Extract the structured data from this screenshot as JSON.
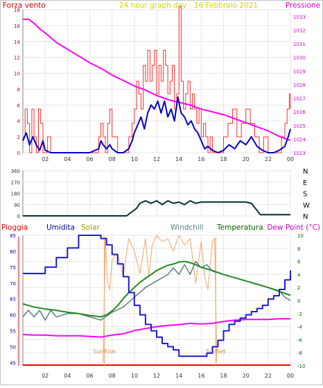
{
  "header": {
    "title": "24 hour graph day - 16 Febbraio 2021",
    "wind_label": "Forza vento",
    "pressure_label": "Pressione"
  },
  "panel3": {
    "rain_label": "Pioggia",
    "humidity_label": "Umidita",
    "solar_label": "Solar",
    "windchill_label": "Windchill",
    "temperature_label": "Temperatura",
    "dewpoint_label": "Dew Point (°C)",
    "sunrise_label": "SunRise",
    "sunset_label": "SunSet"
  },
  "colors": {
    "wind_gust": "#ff2a2a",
    "wind_avg": "#0000cc",
    "pressure": "#ff00ff",
    "direction": "#003333",
    "humidity": "#1a1adb",
    "solar": "#f4a46a",
    "windchill": "#5c7f7f",
    "temperature": "#1f8a1f",
    "dewpoint": "#ff00ff",
    "rain": "#ff0000",
    "sun_lines": "#f4a460"
  },
  "chart_data": [
    {
      "type": "line",
      "name": "wind-pressure",
      "x_ticks": [
        "02",
        "04",
        "06",
        "08",
        "10",
        "12",
        "14",
        "16",
        "18",
        "20",
        "22",
        "00"
      ],
      "xlim": [
        0,
        24
      ],
      "ylim_left": [
        0,
        18
      ],
      "y_ticks_left": [
        0,
        2,
        4,
        6,
        8,
        10,
        12,
        14,
        16,
        18
      ],
      "ylim_right": [
        1023,
        1033.5
      ],
      "y_ticks_right": [
        1023,
        1024,
        1025,
        1026,
        1027,
        1028,
        1029,
        1030,
        1031,
        1032,
        1033
      ],
      "series": [
        {
          "name": "Forza vento",
          "axis": "left",
          "x": [
            0.0,
            0.2,
            0.4,
            0.6,
            0.8,
            1.0,
            1.2,
            1.4,
            1.6,
            1.8,
            2.0,
            2.2,
            2.5,
            3.0,
            3.5,
            4.0,
            4.5,
            5.0,
            5.5,
            6.0,
            6.5,
            6.8,
            7.0,
            7.2,
            7.4,
            7.6,
            7.8,
            8.0,
            8.5,
            9.0,
            9.5,
            9.8,
            10.0,
            10.2,
            10.4,
            10.6,
            10.8,
            11.0,
            11.2,
            11.4,
            11.6,
            11.8,
            12.0,
            12.2,
            12.4,
            12.6,
            12.8,
            13.0,
            13.2,
            13.4,
            13.6,
            13.8,
            14.0,
            14.2,
            14.4,
            14.6,
            14.8,
            15.0,
            15.2,
            15.4,
            15.6,
            15.8,
            16.0,
            16.2,
            16.4,
            16.6,
            16.8,
            17.0,
            17.5,
            18.0,
            18.4,
            18.8,
            19.2,
            19.6,
            20.0,
            20.4,
            20.8,
            21.2,
            21.6,
            22.0,
            22.4,
            22.8,
            23.2,
            23.5,
            23.7,
            23.9,
            24.0
          ],
          "values": [
            2,
            5.5,
            3.7,
            0,
            5.5,
            2,
            0,
            5.5,
            3.7,
            0,
            0,
            2,
            0,
            0,
            0,
            0,
            0,
            0,
            0,
            0,
            0,
            2,
            3.7,
            2,
            0,
            3.7,
            5.5,
            2,
            0,
            0,
            2,
            3.7,
            5.5,
            9,
            7.4,
            5.5,
            11,
            9,
            12.9,
            9,
            11,
            12.9,
            7.4,
            11,
            9,
            12.9,
            11,
            7.4,
            9,
            11,
            5.5,
            7.4,
            18.4,
            9,
            5.5,
            7.4,
            9,
            5.5,
            7.4,
            5.5,
            3.7,
            5.5,
            2,
            3.7,
            2,
            0,
            2,
            0,
            0,
            2,
            3.7,
            5.5,
            2,
            3.7,
            5.5,
            3.7,
            2,
            0,
            2,
            0,
            0,
            0,
            2,
            3.7,
            5.5,
            7.4,
            5.5
          ]
        },
        {
          "name": "Forza vento media",
          "axis": "left",
          "x": [
            0.0,
            0.3,
            0.6,
            0.9,
            1.2,
            1.5,
            1.8,
            2.0,
            2.5,
            3.0,
            4.0,
            5.0,
            6.0,
            6.8,
            7.0,
            7.2,
            7.5,
            7.8,
            8.0,
            8.5,
            9.0,
            9.5,
            9.8,
            10.0,
            10.3,
            10.6,
            10.9,
            11.2,
            11.5,
            11.8,
            12.1,
            12.4,
            12.7,
            13.0,
            13.3,
            13.6,
            13.9,
            14.2,
            14.5,
            14.8,
            15.1,
            15.4,
            15.7,
            16.0,
            16.3,
            16.6,
            17.0,
            17.5,
            18.0,
            18.5,
            19.0,
            19.5,
            20.0,
            20.5,
            21.0,
            21.5,
            22.0,
            22.5,
            23.0,
            23.5,
            23.8,
            24.0
          ],
          "values": [
            1.5,
            2.5,
            1.0,
            2.0,
            1.0,
            0.3,
            1.5,
            0.3,
            0,
            0,
            0,
            0,
            0,
            0.5,
            1.5,
            1.0,
            0.5,
            1.0,
            0.5,
            0,
            0,
            0.5,
            1.5,
            2.5,
            3.5,
            4.5,
            3.0,
            5.0,
            6.0,
            5.5,
            6.5,
            5.0,
            6.5,
            4.5,
            5.5,
            4.0,
            7.0,
            5.0,
            4.5,
            3.5,
            4.0,
            3.0,
            2.5,
            1.5,
            0.5,
            0.8,
            0.3,
            0,
            0.3,
            1.0,
            0.5,
            1.5,
            1.0,
            2.0,
            0.8,
            0.3,
            0,
            0,
            0.3,
            0.8,
            2.0,
            3.0
          ]
        },
        {
          "name": "Pressione",
          "axis": "right",
          "x": [
            0,
            0.5,
            1,
            1.5,
            2,
            3,
            4,
            5,
            6,
            7,
            8,
            9,
            10,
            11,
            12,
            13,
            14,
            15,
            16,
            17,
            18,
            19,
            20,
            21,
            22,
            23,
            24
          ],
          "values": [
            1032.8,
            1032.8,
            1032.5,
            1032.1,
            1031.8,
            1031.1,
            1030.6,
            1030.1,
            1029.6,
            1029.2,
            1028.7,
            1028.3,
            1027.9,
            1027.6,
            1027.2,
            1026.9,
            1026.7,
            1026.5,
            1026.2,
            1026.0,
            1025.8,
            1025.5,
            1025.2,
            1024.9,
            1024.6,
            1024.2,
            1023.9
          ]
        }
      ]
    },
    {
      "type": "line",
      "name": "wind-direction",
      "x_ticks": [
        "02",
        "04",
        "06",
        "08",
        "10",
        "12",
        "14",
        "16",
        "18",
        "20",
        "22",
        "00"
      ],
      "xlim": [
        0,
        24
      ],
      "ylim": [
        0,
        360
      ],
      "y_ticks": [
        0,
        90,
        180,
        270,
        360
      ],
      "y_tick_labels_right": [
        "N",
        "W",
        "S",
        "E",
        "N"
      ],
      "series": [
        {
          "x": [
            0,
            8.5,
            9.3,
            10.2,
            10.5,
            11.0,
            11.5,
            12.0,
            12.5,
            13.0,
            13.5,
            14.0,
            14.5,
            15.0,
            15.5,
            16.0,
            17.0,
            18.0,
            19.0,
            20.0,
            20.5,
            21.3,
            22.0,
            24.0
          ],
          "values": [
            0,
            0,
            0,
            60,
            100,
            120,
            100,
            120,
            90,
            120,
            100,
            110,
            90,
            120,
            100,
            110,
            110,
            110,
            110,
            110,
            100,
            10,
            10,
            10
          ]
        }
      ]
    },
    {
      "type": "line",
      "name": "temperature-humidity",
      "x_ticks": [
        "02",
        "04",
        "06",
        "08",
        "10",
        "12",
        "14",
        "16",
        "18",
        "20",
        "22",
        "00"
      ],
      "xlim": [
        0,
        24
      ],
      "ylim_left": [
        44,
        85
      ],
      "y_ticks_left": [
        45,
        50,
        55,
        60,
        65,
        70,
        75,
        80,
        85
      ],
      "ylim_right": [
        -10,
        10
      ],
      "y_ticks_right": [
        -10,
        -8,
        -6,
        -4,
        -2,
        0,
        2,
        4,
        6,
        8,
        10
      ],
      "sunrise_hour": 7.3,
      "sunset_hour": 17.3,
      "series": [
        {
          "name": "Umidita",
          "axis": "left",
          "x": [
            0,
            1,
            2,
            3,
            4,
            5,
            6,
            7,
            7.5,
            8,
            8.5,
            9,
            9.5,
            10,
            10.5,
            11,
            11.5,
            12,
            12.5,
            13,
            13.5,
            14,
            14.5,
            15,
            15.5,
            16,
            16.5,
            17,
            17.5,
            18,
            18.5,
            19,
            19.5,
            20,
            20.5,
            21,
            21.5,
            22,
            22.5,
            23,
            23.5,
            24
          ],
          "values": [
            73,
            73,
            75,
            78,
            81,
            85,
            85,
            84,
            82,
            79,
            76,
            72,
            67,
            63,
            60,
            57,
            55,
            53,
            51,
            50,
            49,
            47,
            47,
            47,
            47,
            47,
            48,
            50,
            52,
            55,
            57,
            58,
            59,
            60,
            61,
            62,
            63,
            65,
            66,
            68,
            71,
            74
          ]
        },
        {
          "name": "Solar",
          "axis": "left",
          "x": [
            7.2,
            7.4,
            7.6,
            7.8,
            8.0,
            8.3,
            8.6,
            9.0,
            9.5,
            10.0,
            10.5,
            11.0,
            11.3,
            11.6,
            12.0,
            12.5,
            13.0,
            13.5,
            14.0,
            14.5,
            15.0,
            15.5,
            16.0,
            16.3,
            16.6,
            17.0,
            17.2,
            17.4
          ],
          "values": [
            45,
            84,
            70,
            68,
            77,
            79,
            78,
            72,
            84,
            80,
            73,
            84,
            72,
            82,
            85,
            83,
            84,
            80,
            85,
            82,
            84,
            70,
            83,
            72,
            68,
            83,
            84,
            45
          ]
        },
        {
          "name": "Windchill",
          "axis": "right",
          "x": [
            0,
            0.5,
            1,
            1.5,
            2,
            2.5,
            3,
            4,
            5,
            6,
            7,
            8,
            9,
            10,
            11,
            12,
            13,
            13.5,
            14,
            14.5,
            15,
            15.5,
            16,
            16.5,
            17,
            18,
            19,
            20,
            21,
            22,
            23,
            23.5,
            24
          ],
          "values": [
            -2.5,
            -1.5,
            -2.5,
            -1.5,
            -3.0,
            -1.5,
            -2.5,
            -2.0,
            -2.0,
            -2.5,
            -3.0,
            -1.8,
            -1.0,
            0.5,
            2.0,
            3.0,
            4.0,
            5.0,
            4.0,
            5.5,
            4.0,
            6.0,
            5.0,
            5.5,
            4.5,
            4.0,
            3.5,
            3.0,
            2.5,
            2.0,
            1.5,
            0.5,
            0.0
          ]
        },
        {
          "name": "Temperatura",
          "axis": "right",
          "x": [
            0,
            1,
            2,
            3,
            4,
            5,
            6,
            7,
            7.5,
            8,
            8.5,
            9,
            9.5,
            10,
            10.5,
            11,
            11.5,
            12,
            12.5,
            13,
            13.5,
            14,
            14.5,
            15,
            15.5,
            16,
            17,
            18,
            19,
            20,
            21,
            22,
            23,
            24
          ],
          "values": [
            -0.5,
            -1.0,
            -1.3,
            -1.5,
            -1.8,
            -2.0,
            -2.3,
            -2.5,
            -2.2,
            -1.6,
            -0.8,
            0.3,
            1.2,
            2.0,
            2.8,
            3.4,
            4.0,
            4.6,
            5.0,
            5.4,
            5.6,
            5.9,
            6.0,
            5.8,
            5.5,
            5.1,
            4.6,
            4.0,
            3.5,
            3.0,
            2.5,
            2.0,
            1.4,
            0.8
          ]
        },
        {
          "name": "Dew Point (°C)",
          "axis": "right",
          "x": [
            0,
            1,
            2,
            3,
            4,
            5,
            6,
            7,
            8,
            9,
            10,
            11,
            12,
            13,
            14,
            15,
            16,
            17,
            18,
            19,
            20,
            21,
            22,
            23,
            24
          ],
          "values": [
            -5.2,
            -5.3,
            -5.3,
            -5.4,
            -5.4,
            -5.4,
            -5.5,
            -5.6,
            -5.3,
            -5.1,
            -4.6,
            -4.3,
            -4.0,
            -3.8,
            -3.7,
            -3.5,
            -3.6,
            -3.5,
            -3.2,
            -3.0,
            -2.9,
            -2.9,
            -2.9,
            -2.8,
            -2.8
          ]
        }
      ]
    }
  ]
}
